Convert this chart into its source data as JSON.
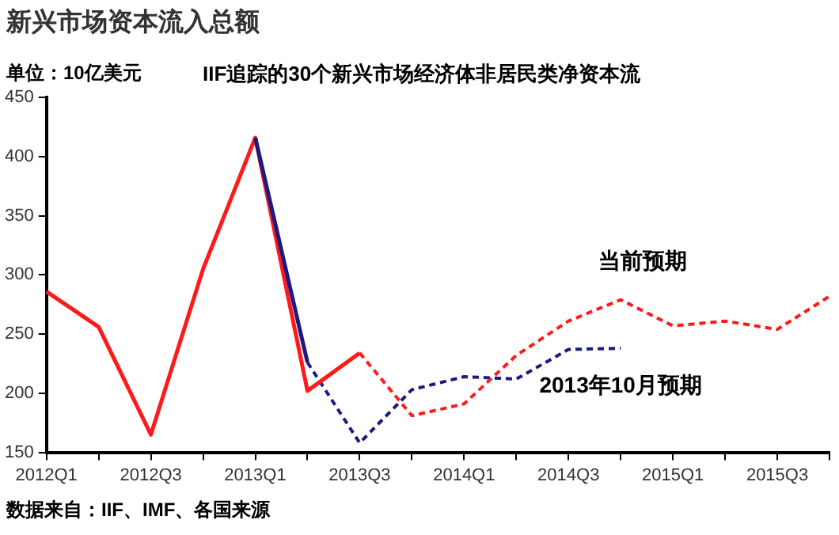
{
  "chart_data": {
    "type": "line",
    "title": "新兴市场资本流入总额",
    "subtitle": "IIF追踪的30个新兴市场经济体非居民类净资本流",
    "ylabel": "单位：10亿美元",
    "categories": [
      "2012Q1",
      null,
      "2012Q3",
      null,
      "2013Q1",
      null,
      "2013Q3",
      null,
      "2014Q1",
      null,
      "2014Q3",
      null,
      "2015Q1",
      null,
      "2015Q3",
      null
    ],
    "series": [
      {
        "color": "#ff1a1a",
        "line_style": "solid",
        "values": [
          286,
          256,
          165,
          305,
          416,
          202,
          234,
          null,
          null,
          null,
          null,
          null,
          null,
          null,
          null,
          null
        ]
      },
      {
        "name": "当前预期",
        "color": "#ff1a1a",
        "line_style": "dashed",
        "values": [
          null,
          null,
          null,
          null,
          null,
          null,
          234,
          181,
          191,
          232,
          261,
          279,
          257,
          261,
          254,
          282
        ]
      },
      {
        "color": "#1a1a80",
        "line_style": "solid",
        "values": [
          null,
          null,
          null,
          null,
          416,
          226,
          null,
          null,
          null,
          null,
          null,
          null,
          null,
          null,
          null,
          null
        ]
      },
      {
        "name": "2013年10月预期",
        "color": "#1a1a80",
        "line_style": "dashed",
        "values": [
          null,
          null,
          null,
          null,
          null,
          226,
          158,
          203,
          214,
          212,
          237,
          238,
          null,
          null,
          null,
          null
        ]
      }
    ],
    "ylim": [
      150,
      450
    ],
    "yticks": [
      150,
      200,
      250,
      300,
      350,
      400,
      450
    ],
    "grid": false,
    "legend": false,
    "marker": "none",
    "annotations": [
      "数据来自：IIF、IMF、各国来源"
    ]
  }
}
